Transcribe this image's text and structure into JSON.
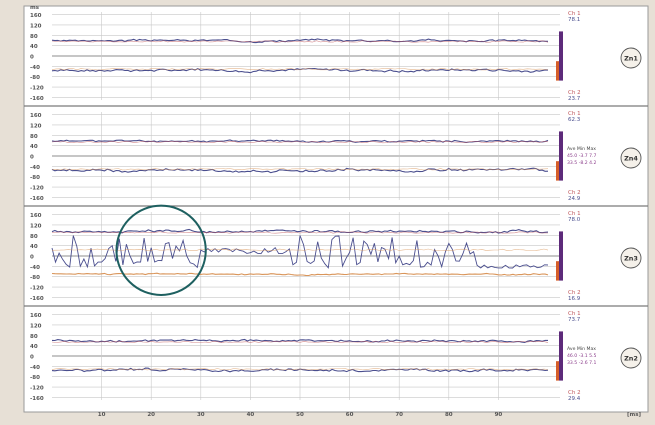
{
  "chart_data": {
    "type": "line",
    "title": "",
    "x_unit": "[ms]",
    "x_ticks": [
      "10",
      "20",
      "30",
      "40",
      "50",
      "60",
      "70",
      "80",
      "90"
    ],
    "y_unit": "ms",
    "y_ticks": [
      "160",
      "120",
      "80",
      "40",
      "0",
      "-40",
      "-80",
      "-120",
      "-160"
    ],
    "xlim": [
      0,
      100
    ],
    "ylim": [
      -170,
      170
    ],
    "grid": true,
    "colors": {
      "signal_upper": "#4a4e8e",
      "signal_lower": "#4a4e8e",
      "reference_upper": "#c0585c",
      "reference_lower": "#d9955a",
      "gridline_minor": "#c8c8c8",
      "gridline_major": "#8e8e8e",
      "annotation_circle": "#1e6060",
      "marker_bar": "#5d2a7a",
      "marker_tick": "#d65e2a"
    },
    "panels": [
      {
        "label": "Zn1",
        "readout_top": [
          "Ch 1",
          "78.1"
        ],
        "readout_bottom": [
          "Ch 2",
          "23.7"
        ],
        "stats": [],
        "series": [
          {
            "kind": "upper",
            "center": 60,
            "amplitude": 8,
            "seed": 3,
            "style": "calm"
          },
          {
            "kind": "lower",
            "center": -55,
            "amplitude": 10,
            "seed": 7,
            "style": "calm"
          }
        ]
      },
      {
        "label": "Zn4",
        "readout_top": [
          "Ch 1",
          "62.3"
        ],
        "readout_bottom": [
          "Ch 2",
          "24.9"
        ],
        "stats": [
          "Ave  Min  Max",
          "45.0  -3.7  7.7",
          "33.5  -8.2  4.2"
        ],
        "series": [
          {
            "kind": "upper",
            "center": 58,
            "amplitude": 8,
            "seed": 11,
            "style": "calm"
          },
          {
            "kind": "lower",
            "center": -55,
            "amplitude": 12,
            "seed": 13,
            "style": "calm"
          }
        ]
      },
      {
        "label": "Zn3",
        "readout_top": [
          "Ch 1",
          "78.0"
        ],
        "readout_bottom": [
          "Ch 2",
          "16.9"
        ],
        "stats": [],
        "annotation": {
          "type": "circle",
          "x_center": 22,
          "y_center": 22,
          "x_radius": 9,
          "note": "highlighted erratic region"
        },
        "series": [
          {
            "kind": "upper",
            "center": 95,
            "amplitude": 10,
            "seed": 17,
            "style": "calm"
          },
          {
            "kind": "lower",
            "center": 20,
            "amplitude": 60,
            "seed": 19,
            "style": "erratic"
          },
          {
            "kind": "reference",
            "center": -70,
            "amplitude": 6,
            "seed": 23,
            "style": "calm"
          }
        ]
      },
      {
        "label": "Zn2",
        "readout_top": [
          "Ch 1",
          "73.7"
        ],
        "readout_bottom": [
          "Ch 2",
          "29.4"
        ],
        "stats": [
          "Ave  Min  Max",
          "46.0  -3.1  5.5",
          "33.5  -2.6  7.1"
        ],
        "series": [
          {
            "kind": "upper",
            "center": 58,
            "amplitude": 9,
            "seed": 29,
            "style": "calm"
          },
          {
            "kind": "lower",
            "center": -55,
            "amplitude": 11,
            "seed": 31,
            "style": "calm"
          }
        ]
      }
    ]
  }
}
